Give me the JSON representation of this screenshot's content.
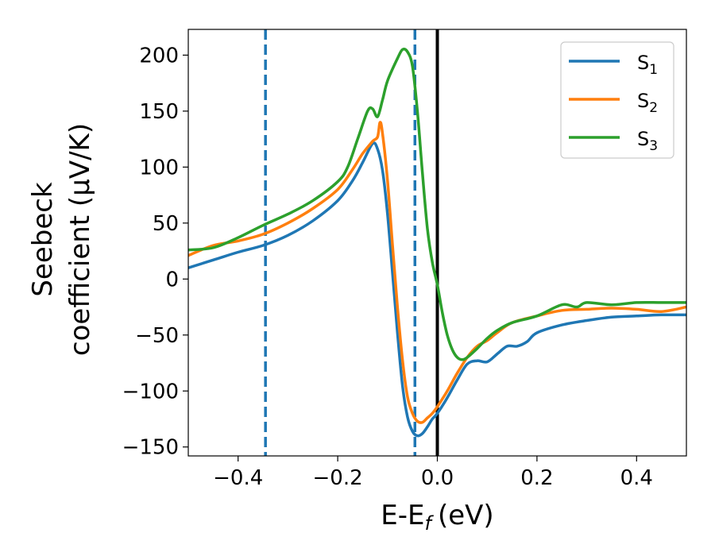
{
  "chart_data": {
    "type": "line",
    "xlabel": "E-E",
    "xlabel_sub": "f",
    "xlabel_unit": "(eV)",
    "ylabel_line1": "Seebeck",
    "ylabel_line2": "coefficient  (μV/K)",
    "xlim": [
      -0.5,
      0.5
    ],
    "ylim": [
      -158,
      223
    ],
    "x_ticks": [
      -0.4,
      -0.2,
      0.0,
      0.2,
      0.4
    ],
    "x_tick_labels": [
      "−0.4",
      "−0.2",
      "0.0",
      "0.2",
      "0.4"
    ],
    "y_ticks": [
      200,
      150,
      100,
      50,
      0,
      -50,
      -100,
      -150
    ],
    "y_tick_labels": [
      "200",
      "150",
      "100",
      "50",
      "0",
      "−50",
      "−100",
      "−150"
    ],
    "grid": false,
    "legend_position": "top-right",
    "reference_lines": [
      {
        "x": -0.345,
        "style": "dashed",
        "color": "#1f77b4"
      },
      {
        "x": -0.045,
        "style": "dashed",
        "color": "#1f77b4"
      },
      {
        "x": 0.0,
        "style": "solid",
        "color": "#000000"
      }
    ],
    "series": [
      {
        "name": "S",
        "name_sub": "1",
        "color": "#1f77b4",
        "points": [
          [
            -0.5,
            10
          ],
          [
            -0.45,
            17
          ],
          [
            -0.4,
            24
          ],
          [
            -0.35,
            30
          ],
          [
            -0.3,
            39
          ],
          [
            -0.25,
            52
          ],
          [
            -0.2,
            70
          ],
          [
            -0.17,
            88
          ],
          [
            -0.15,
            104
          ],
          [
            -0.13,
            121
          ],
          [
            -0.12,
            116
          ],
          [
            -0.11,
            97
          ],
          [
            -0.1,
            58
          ],
          [
            -0.09,
            5
          ],
          [
            -0.08,
            -48
          ],
          [
            -0.07,
            -95
          ],
          [
            -0.06,
            -123
          ],
          [
            -0.05,
            -136
          ],
          [
            -0.04,
            -140
          ],
          [
            -0.03,
            -138
          ],
          [
            -0.02,
            -132
          ],
          [
            -0.01,
            -125
          ],
          [
            0.0,
            -120
          ],
          [
            0.02,
            -106
          ],
          [
            0.04,
            -90
          ],
          [
            0.06,
            -76
          ],
          [
            0.08,
            -73
          ],
          [
            0.1,
            -74
          ],
          [
            0.12,
            -67
          ],
          [
            0.14,
            -60
          ],
          [
            0.16,
            -60
          ],
          [
            0.18,
            -56
          ],
          [
            0.2,
            -48
          ],
          [
            0.25,
            -41
          ],
          [
            0.3,
            -37
          ],
          [
            0.35,
            -34
          ],
          [
            0.4,
            -33
          ],
          [
            0.45,
            -32
          ],
          [
            0.5,
            -32
          ]
        ]
      },
      {
        "name": "S",
        "name_sub": "2",
        "color": "#ff7f0e",
        "points": [
          [
            -0.5,
            21
          ],
          [
            -0.45,
            30
          ],
          [
            -0.4,
            34
          ],
          [
            -0.35,
            40
          ],
          [
            -0.3,
            50
          ],
          [
            -0.25,
            63
          ],
          [
            -0.2,
            80
          ],
          [
            -0.17,
            98
          ],
          [
            -0.15,
            112
          ],
          [
            -0.13,
            123
          ],
          [
            -0.12,
            127
          ],
          [
            -0.115,
            140
          ],
          [
            -0.11,
            130
          ],
          [
            -0.1,
            88
          ],
          [
            -0.09,
            30
          ],
          [
            -0.08,
            -25
          ],
          [
            -0.07,
            -72
          ],
          [
            -0.06,
            -105
          ],
          [
            -0.05,
            -120
          ],
          [
            -0.04,
            -127
          ],
          [
            -0.03,
            -128
          ],
          [
            -0.02,
            -124
          ],
          [
            -0.01,
            -120
          ],
          [
            0.0,
            -114
          ],
          [
            0.02,
            -100
          ],
          [
            0.04,
            -84
          ],
          [
            0.06,
            -70
          ],
          [
            0.08,
            -60
          ],
          [
            0.1,
            -55
          ],
          [
            0.12,
            -48
          ],
          [
            0.15,
            -39
          ],
          [
            0.2,
            -33
          ],
          [
            0.25,
            -28
          ],
          [
            0.3,
            -27
          ],
          [
            0.35,
            -26
          ],
          [
            0.4,
            -27
          ],
          [
            0.45,
            -29
          ],
          [
            0.5,
            -25
          ]
        ]
      },
      {
        "name": "S",
        "name_sub": "3",
        "color": "#2ca02c",
        "points": [
          [
            -0.5,
            26
          ],
          [
            -0.45,
            28
          ],
          [
            -0.4,
            37
          ],
          [
            -0.35,
            48
          ],
          [
            -0.3,
            58
          ],
          [
            -0.25,
            70
          ],
          [
            -0.2,
            87
          ],
          [
            -0.18,
            100
          ],
          [
            -0.16,
            125
          ],
          [
            -0.14,
            150
          ],
          [
            -0.13,
            152
          ],
          [
            -0.12,
            145
          ],
          [
            -0.11,
            160
          ],
          [
            -0.1,
            177
          ],
          [
            -0.08,
            197
          ],
          [
            -0.07,
            205
          ],
          [
            -0.06,
            203
          ],
          [
            -0.05,
            190
          ],
          [
            -0.04,
            150
          ],
          [
            -0.03,
            95
          ],
          [
            -0.02,
            45
          ],
          [
            -0.01,
            15
          ],
          [
            0.0,
            -5
          ],
          [
            0.01,
            -30
          ],
          [
            0.02,
            -50
          ],
          [
            0.03,
            -63
          ],
          [
            0.04,
            -70
          ],
          [
            0.05,
            -72
          ],
          [
            0.06,
            -70
          ],
          [
            0.08,
            -62
          ],
          [
            0.1,
            -53
          ],
          [
            0.12,
            -46
          ],
          [
            0.15,
            -39
          ],
          [
            0.2,
            -33
          ],
          [
            0.25,
            -23
          ],
          [
            0.28,
            -25
          ],
          [
            0.3,
            -21
          ],
          [
            0.35,
            -23
          ],
          [
            0.4,
            -21
          ],
          [
            0.45,
            -21
          ],
          [
            0.5,
            -21
          ]
        ]
      }
    ]
  }
}
